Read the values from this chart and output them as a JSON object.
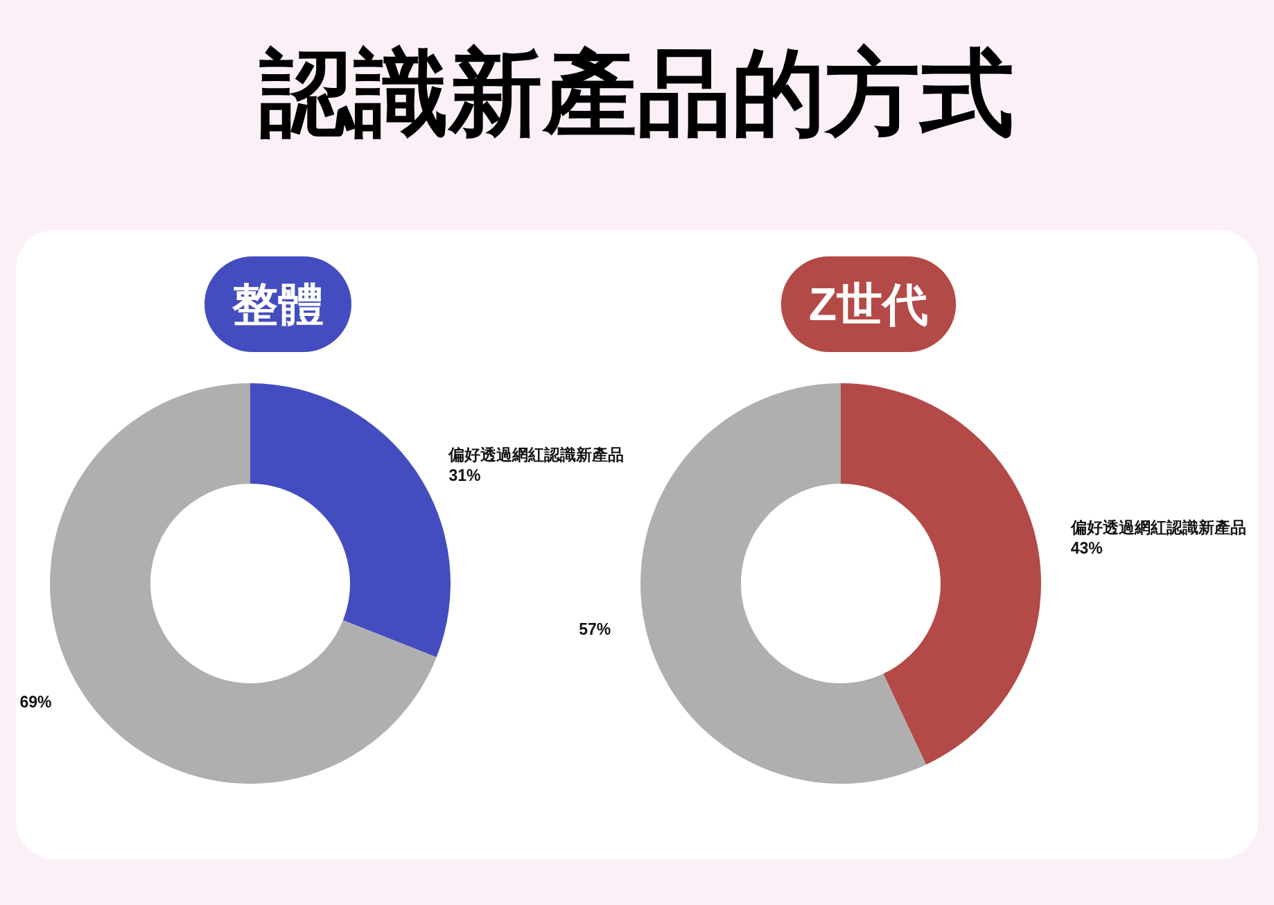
{
  "chart_data": [
    {
      "type": "other",
      "title": "認識新產品的方式"
    },
    {
      "type": "donut",
      "title": "整體",
      "categories": [
        "偏好透過網紅認識新產品",
        null
      ],
      "values": [
        31,
        69
      ],
      "value_labels": [
        "31%",
        "69%"
      ],
      "colors": [
        "#444dbf",
        "#afafaf"
      ],
      "legend": false
    },
    {
      "type": "donut",
      "title": "Z世代",
      "categories": [
        "偏好透過網紅認識新產品",
        null
      ],
      "values": [
        43,
        57
      ],
      "value_labels": [
        "43%",
        "57%"
      ],
      "colors": [
        "#b34a47",
        "#afafaf"
      ],
      "legend": false
    }
  ]
}
